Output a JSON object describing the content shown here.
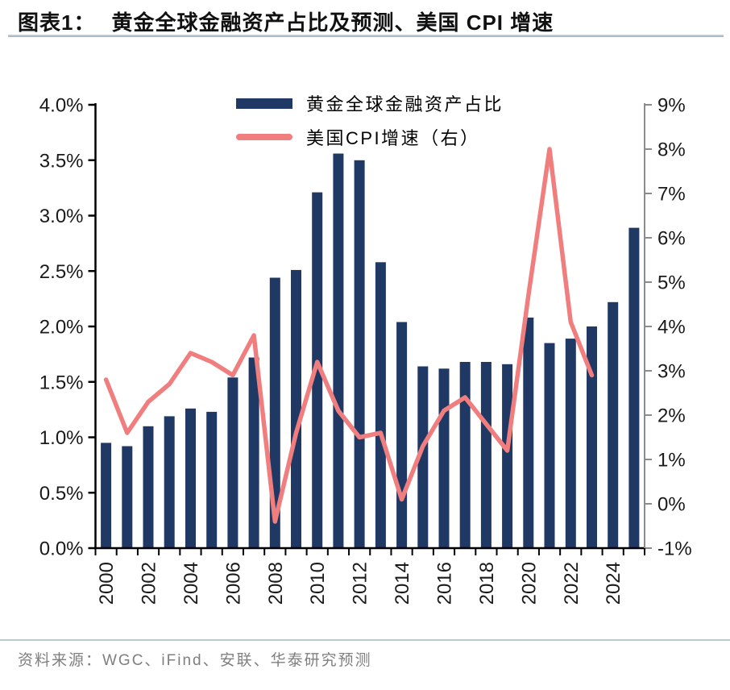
{
  "title": {
    "prefix": "图表1：",
    "text": "黄金全球金融资产占比及预测、美国 CPI 增速"
  },
  "legend": {
    "items": [
      {
        "label": "黄金全球金融资产占比",
        "marker": "bar-swatch",
        "color": "#1F3864"
      },
      {
        "label": "美国CPI增速（右）",
        "marker": "line-swatch",
        "color": "#F17E7E"
      }
    ]
  },
  "source": {
    "text": "资料来源：WGC、iFind、安联、华泰研究预测"
  },
  "colors": {
    "bar": "#1F3864",
    "line": "#F17E7E",
    "axis_left": "#000000",
    "axis_right": "#8c8c8c",
    "axis_label": "#1a1a1a",
    "title_rule": "#a3b8cb",
    "source_rule": "#b9cad7",
    "source_text": "#7f7f7f"
  },
  "chart_data": {
    "type": "bar",
    "subtype": "bar+line dual-axis",
    "title": "黄金全球金融资产占比及预测、美国 CPI 增速",
    "categories": [
      2000,
      2001,
      2002,
      2003,
      2004,
      2005,
      2006,
      2007,
      2008,
      2009,
      2010,
      2011,
      2012,
      2013,
      2014,
      2015,
      2016,
      2017,
      2018,
      2019,
      2020,
      2021,
      2022,
      2023,
      2024,
      2025
    ],
    "series": [
      {
        "name": "黄金全球金融资产占比",
        "type": "bar",
        "axis": "left",
        "color": "#1F3864",
        "unit": "%",
        "values": [
          0.95,
          0.92,
          1.1,
          1.19,
          1.26,
          1.23,
          1.54,
          1.72,
          2.44,
          2.51,
          3.21,
          3.56,
          3.5,
          2.58,
          2.04,
          1.64,
          1.62,
          1.68,
          1.68,
          1.66,
          2.08,
          1.85,
          1.89,
          2.0,
          2.22,
          2.89
        ]
      },
      {
        "name": "美国CPI增速（右）",
        "type": "line",
        "axis": "right",
        "color": "#F17E7E",
        "unit": "%",
        "values": [
          2.8,
          1.6,
          2.3,
          2.7,
          3.4,
          3.2,
          2.9,
          3.8,
          -0.4,
          1.6,
          3.2,
          2.1,
          1.5,
          1.6,
          0.1,
          1.3,
          2.1,
          2.4,
          1.8,
          1.2,
          4.7,
          8.0,
          4.1,
          2.9,
          null,
          null
        ]
      }
    ],
    "left_axis": {
      "min": 0,
      "max": 4,
      "step": 0.5,
      "labels": [
        "0.0%",
        "0.5%",
        "1.0%",
        "1.5%",
        "2.0%",
        "2.5%",
        "3.0%",
        "3.5%",
        "4.0%"
      ]
    },
    "right_axis": {
      "min": -1,
      "max": 9,
      "step": 1,
      "labels": [
        "-1%",
        "0%",
        "1%",
        "2%",
        "3%",
        "4%",
        "5%",
        "6%",
        "7%",
        "8%",
        "9%"
      ]
    },
    "x_tick_labels": [
      "2000",
      "2002",
      "2004",
      "2006",
      "2008",
      "2010",
      "2012",
      "2014",
      "2016",
      "2018",
      "2020",
      "2022",
      "2024"
    ],
    "grid": false,
    "legend_position": "top-center"
  }
}
